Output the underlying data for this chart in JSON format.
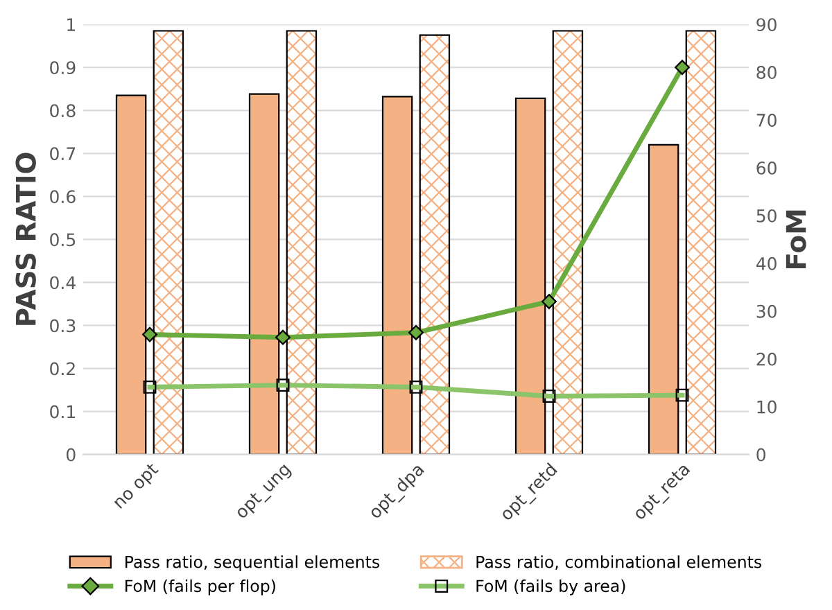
{
  "chart_data": {
    "type": "bar",
    "ylabel": "PASS RATIO",
    "y2label": "FoM",
    "categories": [
      "no opt",
      "opt_ung",
      "opt_dpa",
      "opt_retd",
      "opt_reta"
    ],
    "series": [
      {
        "name": "Pass ratio, sequential elements",
        "color": "#f4b183",
        "values": [
          0.835,
          0.838,
          0.832,
          0.828,
          0.72
        ]
      },
      {
        "name": "Pass ratio, combinational elements",
        "color": "#f4b183",
        "values": [
          0.985,
          0.985,
          0.975,
          0.985,
          0.985
        ]
      },
      {
        "name": "FoM (fails per flop)",
        "type": "line",
        "axis": "y2",
        "marker": "diamond",
        "color": "#6aab3f",
        "values": [
          25.1,
          24.5,
          25.5,
          32,
          81
        ]
      },
      {
        "name": "FoM (fails by area)",
        "type": "line",
        "axis": "y2",
        "marker": "square",
        "color": "#8cc46a",
        "values": [
          14.1,
          14.5,
          14.1,
          12.2,
          12.4
        ]
      }
    ],
    "ylim": [
      0,
      1
    ],
    "yticks": [
      0,
      0.1,
      0.2,
      0.3,
      0.4,
      0.5,
      0.6,
      0.7,
      0.8,
      0.9,
      1
    ],
    "y2lim": [
      0,
      90
    ],
    "y2ticks": [
      0,
      10,
      20,
      30,
      40,
      50,
      60,
      70,
      80,
      90
    ],
    "grid": "y",
    "legend": "bottom"
  }
}
